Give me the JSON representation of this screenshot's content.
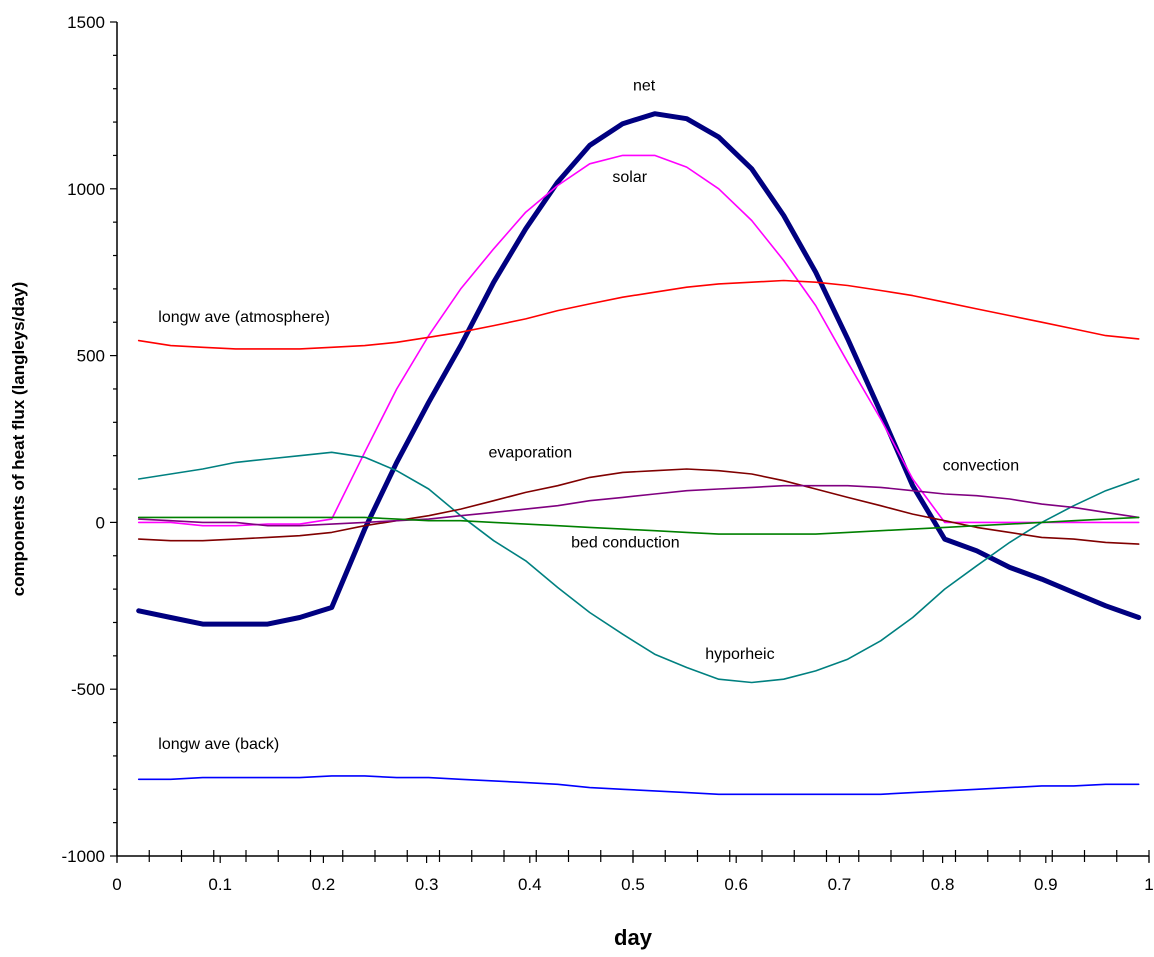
{
  "chart_data": {
    "type": "line",
    "title": "",
    "xlabel": "day",
    "ylabel": "components of heat flux (langleys/day)",
    "xlim": [
      0,
      1
    ],
    "ylim": [
      -1000,
      1500
    ],
    "x_ticks": [
      "0",
      "0.1",
      "0.2",
      "0.3",
      "0.4",
      "0.5",
      "0.6",
      "0.7",
      "0.8",
      "0.9",
      "1"
    ],
    "y_ticks": [
      "1500",
      "1000",
      "500",
      "0",
      "-500",
      "-1000"
    ],
    "grid": false,
    "legend": "none (series labeled inline)",
    "x": [
      0.021,
      0.052,
      0.083,
      0.115,
      0.146,
      0.177,
      0.208,
      0.24,
      0.271,
      0.302,
      0.333,
      0.365,
      0.396,
      0.427,
      0.458,
      0.49,
      0.521,
      0.552,
      0.583,
      0.615,
      0.646,
      0.677,
      0.708,
      0.74,
      0.771,
      0.802,
      0.833,
      0.865,
      0.896,
      0.927,
      0.958,
      0.99
    ],
    "series": [
      {
        "name": "net",
        "color": "#000080",
        "values": [
          -265,
          -285,
          -305,
          -305,
          -305,
          -285,
          -255,
          -20,
          180,
          360,
          530,
          720,
          880,
          1020,
          1130,
          1195,
          1225,
          1210,
          1155,
          1060,
          920,
          750,
          550,
          330,
          110,
          -50,
          -85,
          -135,
          -170,
          -210,
          -250,
          -285
        ]
      },
      {
        "name": "solar",
        "color": "#ff00ff",
        "values": [
          0,
          0,
          -10,
          -10,
          -5,
          -5,
          10,
          210,
          400,
          560,
          700,
          820,
          930,
          1010,
          1075,
          1100,
          1100,
          1065,
          1000,
          905,
          785,
          650,
          480,
          310,
          130,
          0,
          0,
          0,
          0,
          0,
          0,
          0
        ]
      },
      {
        "name": "longwave (atmosphere)",
        "color": "#ff0000",
        "values": [
          545,
          530,
          525,
          520,
          520,
          520,
          525,
          530,
          540,
          555,
          570,
          590,
          610,
          635,
          655,
          675,
          690,
          705,
          715,
          720,
          725,
          720,
          710,
          695,
          680,
          660,
          640,
          620,
          600,
          580,
          560,
          550
        ]
      },
      {
        "name": "hyporheic",
        "color": "#008080",
        "values": [
          130,
          145,
          160,
          180,
          190,
          200,
          210,
          195,
          155,
          100,
          20,
          -55,
          -115,
          -195,
          -270,
          -335,
          -395,
          -435,
          -470,
          -480,
          -470,
          -445,
          -410,
          -355,
          -285,
          -200,
          -130,
          -60,
          0,
          50,
          95,
          130
        ]
      },
      {
        "name": "evaporation",
        "color": "#800000",
        "values": [
          -50,
          -55,
          -55,
          -50,
          -45,
          -40,
          -30,
          -10,
          5,
          20,
          40,
          65,
          90,
          110,
          135,
          150,
          155,
          160,
          155,
          145,
          125,
          100,
          75,
          50,
          25,
          5,
          -15,
          -30,
          -45,
          -50,
          -60,
          -65
        ]
      },
      {
        "name": "convection",
        "color": "#800080",
        "values": [
          10,
          5,
          0,
          0,
          -10,
          -10,
          -5,
          0,
          5,
          10,
          20,
          30,
          40,
          50,
          65,
          75,
          85,
          95,
          100,
          105,
          110,
          110,
          110,
          105,
          95,
          85,
          80,
          70,
          55,
          45,
          30,
          15
        ]
      },
      {
        "name": "bed conduction",
        "color": "#008000",
        "values": [
          15,
          15,
          15,
          15,
          15,
          15,
          15,
          15,
          10,
          5,
          5,
          0,
          -5,
          -10,
          -15,
          -20,
          -25,
          -30,
          -35,
          -35,
          -35,
          -35,
          -30,
          -25,
          -20,
          -15,
          -10,
          -5,
          0,
          5,
          10,
          15
        ]
      },
      {
        "name": "longwave (back)",
        "color": "#0000ff",
        "values": [
          -770,
          -770,
          -765,
          -765,
          -765,
          -765,
          -760,
          -760,
          -765,
          -765,
          -770,
          -775,
          -780,
          -785,
          -795,
          -800,
          -805,
          -810,
          -815,
          -815,
          -815,
          -815,
          -815,
          -815,
          -810,
          -805,
          -800,
          -795,
          -790,
          -790,
          -785,
          -785
        ]
      }
    ],
    "labels": [
      {
        "text": "net",
        "x": 0.5,
        "y": 1295
      },
      {
        "text": "solar",
        "x": 0.48,
        "y": 1020
      },
      {
        "text": "longw ave (atmosphere)",
        "x": 0.04,
        "y": 600
      },
      {
        "text": "evaporation",
        "x": 0.36,
        "y": 195
      },
      {
        "text": "convection",
        "x": 0.8,
        "y": 155
      },
      {
        "text": "bed conduction",
        "x": 0.44,
        "y": -75
      },
      {
        "text": "hyporheic",
        "x": 0.57,
        "y": -410
      },
      {
        "text": "longw ave (back)",
        "x": 0.04,
        "y": -680
      }
    ]
  }
}
